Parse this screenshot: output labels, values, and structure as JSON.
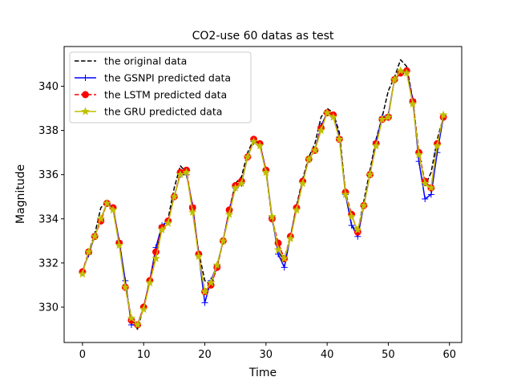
{
  "chart_data": {
    "type": "line",
    "title": "CO2-use 60 datas as test",
    "xlabel": "Time",
    "ylabel": "Magnitude",
    "xlim": [
      -3,
      62
    ],
    "ylim": [
      328.4,
      341.8
    ],
    "xticks": [
      0,
      10,
      20,
      30,
      40,
      50,
      60
    ],
    "yticks": [
      330,
      332,
      334,
      336,
      338,
      340
    ],
    "grid": false,
    "legend_position": "top-left",
    "x": [
      0,
      1,
      2,
      3,
      4,
      5,
      6,
      7,
      8,
      9,
      10,
      11,
      12,
      13,
      14,
      15,
      16,
      17,
      18,
      19,
      20,
      21,
      22,
      23,
      24,
      25,
      26,
      27,
      28,
      29,
      30,
      31,
      32,
      33,
      34,
      35,
      36,
      37,
      38,
      39,
      40,
      41,
      42,
      43,
      44,
      45,
      46,
      47,
      48,
      49,
      50,
      51,
      52,
      53,
      54,
      55,
      56,
      57,
      58,
      59
    ],
    "series": [
      {
        "name": "the original data",
        "color": "#000000",
        "style": "dashed",
        "marker": "none",
        "values": [
          331.6,
          332.5,
          333.3,
          334.5,
          334.8,
          334.4,
          332.9,
          331.0,
          329.5,
          329.0,
          330.0,
          331.2,
          332.4,
          333.6,
          334.0,
          335.4,
          336.4,
          336.1,
          334.4,
          332.5,
          331.2,
          331.0,
          331.8,
          333.0,
          334.4,
          335.6,
          335.9,
          337.0,
          337.6,
          337.4,
          336.1,
          334.0,
          332.6,
          332.0,
          333.2,
          334.6,
          335.8,
          336.8,
          337.4,
          338.6,
          339.0,
          338.8,
          337.9,
          335.2,
          333.7,
          333.4,
          334.8,
          336.2,
          337.6,
          338.6,
          339.8,
          340.4,
          341.2,
          340.9,
          339.4,
          337.0,
          335.5,
          336.1,
          337.6,
          338.6
        ]
      },
      {
        "name": "the GSNPI predicted data",
        "color": "#0000ff",
        "style": "solid",
        "marker": "plus",
        "values": [
          331.6,
          332.4,
          333.2,
          334.0,
          334.7,
          334.5,
          333.0,
          331.2,
          329.2,
          329.2,
          330.0,
          331.2,
          332.7,
          333.7,
          333.9,
          335.0,
          336.0,
          336.0,
          334.6,
          332.4,
          330.2,
          331.2,
          331.9,
          333.0,
          334.4,
          335.4,
          335.6,
          336.8,
          337.5,
          337.4,
          336.2,
          334.1,
          332.4,
          331.8,
          333.2,
          334.5,
          335.7,
          336.7,
          337.1,
          338.2,
          338.8,
          338.7,
          337.7,
          335.1,
          333.7,
          333.2,
          334.6,
          336.0,
          337.5,
          338.6,
          338.7,
          340.3,
          340.6,
          340.7,
          339.4,
          336.6,
          334.9,
          335.1,
          337.0,
          338.6
        ]
      },
      {
        "name": "the LSTM predicted data",
        "color": "#ff0000",
        "style": "dashed",
        "marker": "circle",
        "values": [
          331.6,
          332.5,
          333.2,
          333.9,
          334.7,
          334.5,
          332.9,
          330.9,
          329.4,
          329.2,
          330.0,
          331.2,
          332.5,
          333.6,
          333.9,
          335.0,
          336.1,
          336.2,
          334.5,
          332.4,
          330.7,
          331.0,
          331.8,
          333.0,
          334.4,
          335.5,
          335.7,
          336.8,
          337.6,
          337.4,
          336.2,
          334.0,
          332.9,
          332.2,
          333.2,
          334.5,
          335.7,
          336.7,
          337.1,
          338.1,
          338.8,
          338.7,
          337.6,
          335.2,
          334.2,
          333.4,
          334.6,
          336.0,
          337.4,
          338.5,
          338.6,
          340.3,
          340.6,
          340.7,
          339.3,
          337.0,
          335.7,
          335.4,
          337.4,
          338.6
        ]
      },
      {
        "name": "the GRU predicted data",
        "color": "#bfbf00",
        "style": "solid",
        "marker": "star",
        "values": [
          331.5,
          332.5,
          333.2,
          334.0,
          334.7,
          334.4,
          332.8,
          330.9,
          329.5,
          329.2,
          329.9,
          331.1,
          332.2,
          333.5,
          333.8,
          335.0,
          336.0,
          336.1,
          334.3,
          332.3,
          330.7,
          331.1,
          331.9,
          333.0,
          334.2,
          335.4,
          335.6,
          336.8,
          337.5,
          337.3,
          336.1,
          334.1,
          332.6,
          332.2,
          333.1,
          334.4,
          335.6,
          336.7,
          337.1,
          338.0,
          338.8,
          338.6,
          337.6,
          335.1,
          334.1,
          333.5,
          334.6,
          336.0,
          337.3,
          338.5,
          338.6,
          340.3,
          340.7,
          340.6,
          339.2,
          336.9,
          335.6,
          335.4,
          337.3,
          338.7
        ]
      }
    ]
  }
}
